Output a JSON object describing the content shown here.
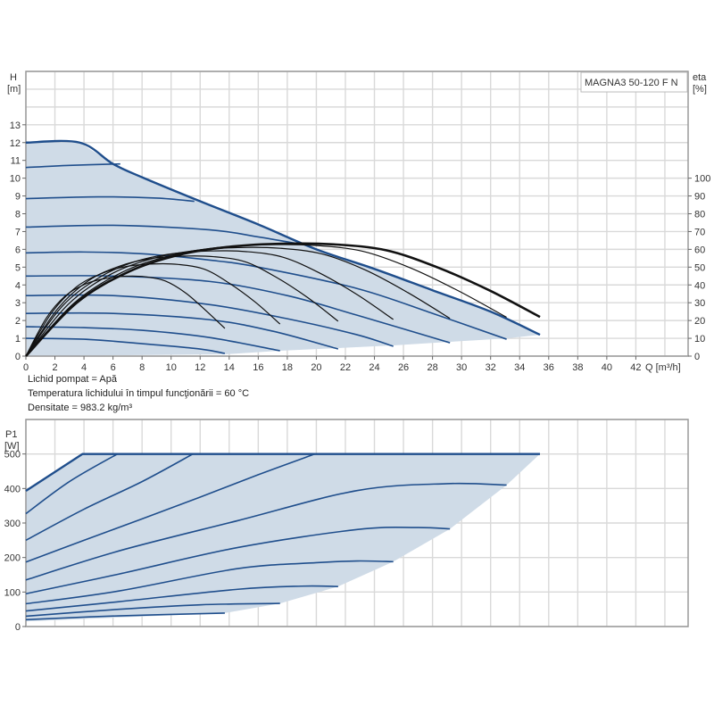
{
  "colors": {
    "area_fill": "#cfdbe7",
    "head_line": "#1f4e8c",
    "eff_line": "#111111",
    "grid": "#d9d9d9",
    "axis": "#9a9a9a"
  },
  "notes": [
    "Lichid pompat = Apă",
    "Temperatura lichidului în timpul funcţionării = 60 °C",
    "Densitate = 983.2 kg/m³"
  ],
  "chart_data": [
    {
      "type": "line",
      "title": "MAGNA3 50-120 F N",
      "xlabel": "Q [m³/h]",
      "ylabel": "H",
      "yunit": "[m]",
      "y2label": "eta",
      "y2unit": "[%]",
      "xlim": [
        0,
        45.6
      ],
      "ylim": [
        0,
        16
      ],
      "y2lim": [
        0,
        160
      ],
      "grid": true,
      "xticks": [
        0,
        2,
        4,
        6,
        8,
        10,
        12,
        14,
        16,
        18,
        20,
        22,
        24,
        26,
        28,
        30,
        32,
        34,
        36,
        38,
        40,
        42
      ],
      "yticks": [
        0,
        1,
        2,
        3,
        4,
        5,
        6,
        7,
        8,
        9,
        10,
        11,
        12,
        13
      ],
      "y2ticks": [
        0,
        10,
        20,
        30,
        40,
        50,
        60,
        70,
        80,
        90,
        100
      ],
      "operating_area": [
        [
          0,
          0
        ],
        [
          13.7,
          0.1
        ],
        [
          17.5,
          0.3
        ],
        [
          21.5,
          0.45
        ],
        [
          25.3,
          0.6
        ],
        [
          29.2,
          0.8
        ],
        [
          33.1,
          1.0
        ],
        [
          35.4,
          1.2
        ],
        [
          32,
          2.5
        ],
        [
          28,
          3.7
        ],
        [
          24,
          4.9
        ],
        [
          20,
          6.0
        ],
        [
          16,
          7.4
        ],
        [
          12,
          8.7
        ],
        [
          8,
          10.05
        ],
        [
          6,
          10.8
        ],
        [
          3.7,
          12
        ],
        [
          0,
          12
        ]
      ],
      "head_curves": [
        {
          "points": [
            [
              0,
              12
            ],
            [
              3.7,
              12
            ],
            [
              6,
              10.8
            ],
            [
              8,
              10.05
            ],
            [
              12,
              8.7
            ],
            [
              16,
              7.4
            ],
            [
              20,
              6.0
            ],
            [
              24,
              4.9
            ],
            [
              28,
              3.7
            ],
            [
              32,
              2.5
            ],
            [
              35.4,
              1.2
            ]
          ],
          "max": true
        },
        {
          "points": [
            [
              0,
              10.6
            ],
            [
              3,
              10.72
            ],
            [
              6.5,
              10.8
            ]
          ]
        },
        {
          "points": [
            [
              0,
              8.85
            ],
            [
              5,
              8.95
            ],
            [
              9,
              8.88
            ],
            [
              11.6,
              8.7
            ]
          ]
        },
        {
          "points": [
            [
              0,
              7.25
            ],
            [
              6,
              7.35
            ],
            [
              12.6,
              7.1
            ],
            [
              16,
              6.7
            ],
            [
              18.5,
              6.35
            ]
          ]
        },
        {
          "points": [
            [
              0,
              5.8
            ],
            [
              4,
              5.85
            ],
            [
              8,
              5.75
            ],
            [
              12.6,
              5.4
            ],
            [
              16,
              5.0
            ],
            [
              22.8,
              3.8
            ],
            [
              28,
              2.4
            ],
            [
              33.1,
              0.95
            ]
          ]
        },
        {
          "points": [
            [
              0,
              4.5
            ],
            [
              6,
              4.5
            ],
            [
              12.6,
              4.2
            ],
            [
              18,
              3.4
            ],
            [
              22.8,
              2.3
            ],
            [
              29.2,
              0.75
            ]
          ]
        },
        {
          "points": [
            [
              0,
              3.4
            ],
            [
              6,
              3.4
            ],
            [
              12.6,
              2.9
            ],
            [
              18,
              2.1
            ],
            [
              22.8,
              1.2
            ],
            [
              25.3,
              0.55
            ]
          ]
        },
        {
          "points": [
            [
              0,
              2.4
            ],
            [
              6,
              2.4
            ],
            [
              12.6,
              2.05
            ],
            [
              17,
              1.4
            ],
            [
              21.5,
              0.4
            ]
          ]
        },
        {
          "points": [
            [
              0,
              1.65
            ],
            [
              4,
              1.6
            ],
            [
              8,
              1.45
            ],
            [
              12.6,
              1.05
            ],
            [
              17.5,
              0.3
            ]
          ]
        },
        {
          "points": [
            [
              0,
              1.0
            ],
            [
              4,
              0.95
            ],
            [
              8,
              0.7
            ],
            [
              12,
              0.4
            ],
            [
              13.7,
              0.15
            ]
          ]
        }
      ],
      "efficiency_curves": [
        {
          "points": [
            [
              0,
              0
            ],
            [
              1.4,
              21.3
            ],
            [
              2.7,
              33.7
            ],
            [
              4.1,
              40.5
            ],
            [
              5.5,
              43.7
            ],
            [
              6.9,
              44.9
            ],
            [
              8.2,
              44.6
            ],
            [
              9.6,
              42.2
            ],
            [
              11.0,
              35.5
            ],
            [
              12.3,
              26.3
            ],
            [
              13.7,
              15.6
            ]
          ]
        },
        {
          "points": [
            [
              0,
              0
            ],
            [
              1.8,
              24.6
            ],
            [
              3.5,
              39
            ],
            [
              5.3,
              46.7
            ],
            [
              7.0,
              50.5
            ],
            [
              8.8,
              51.8
            ],
            [
              10.5,
              51.5
            ],
            [
              12.3,
              48.8
            ],
            [
              14.0,
              41
            ],
            [
              15.8,
              30.3
            ],
            [
              17.5,
              18
            ]
          ]
        },
        {
          "points": [
            [
              0,
              0
            ],
            [
              2.2,
              26.7
            ],
            [
              4.3,
              42.3
            ],
            [
              6.5,
              50.7
            ],
            [
              8.6,
              54.8
            ],
            [
              10.8,
              56.2
            ],
            [
              12.9,
              55.9
            ],
            [
              15.1,
              53
            ],
            [
              17.2,
              44.5
            ],
            [
              19.4,
              32.9
            ],
            [
              21.5,
              19.6
            ]
          ]
        },
        {
          "points": [
            [
              0,
              0
            ],
            [
              2.5,
              28
            ],
            [
              5.1,
              44.4
            ],
            [
              7.6,
              53.3
            ],
            [
              10.1,
              57.6
            ],
            [
              12.7,
              59.1
            ],
            [
              15.2,
              58.7
            ],
            [
              17.7,
              55.6
            ],
            [
              20.2,
              46.8
            ],
            [
              22.8,
              34.6
            ],
            [
              25.3,
              20.6
            ]
          ]
        },
        {
          "points": [
            [
              0,
              0
            ],
            [
              2.9,
              29
            ],
            [
              5.8,
              45.8
            ],
            [
              8.8,
              55
            ],
            [
              11.7,
              59.4
            ],
            [
              14.6,
              61
            ],
            [
              17.5,
              60.6
            ],
            [
              20.4,
              57.4
            ],
            [
              23.4,
              48.3
            ],
            [
              26.3,
              35.7
            ],
            [
              29.2,
              21.2
            ]
          ]
        },
        {
          "points": [
            [
              0,
              0
            ],
            [
              3.3,
              29.7
            ],
            [
              6.6,
              47
            ],
            [
              9.9,
              56.4
            ],
            [
              13.2,
              61
            ],
            [
              16.6,
              62.6
            ],
            [
              19.9,
              62.2
            ],
            [
              23.2,
              58.9
            ],
            [
              26.5,
              49.5
            ],
            [
              29.8,
              36.6
            ],
            [
              33.1,
              21.8
            ]
          ]
        },
        {
          "points": [
            [
              0,
              0
            ],
            [
              3.5,
              30
            ],
            [
              7.1,
              47.5
            ],
            [
              10.6,
              57
            ],
            [
              14.2,
              61.6
            ],
            [
              17.7,
              63.2
            ],
            [
              21.2,
              62.8
            ],
            [
              24.8,
              59.5
            ],
            [
              28.3,
              50
            ],
            [
              31.9,
              37
            ],
            [
              35.4,
              22
            ]
          ],
          "max": true
        }
      ]
    },
    {
      "type": "line",
      "ylabel": "P1",
      "yunit": "[W]",
      "xlim": [
        0,
        45.6
      ],
      "ylim": [
        0,
        600
      ],
      "grid": true,
      "yticks": [
        0,
        100,
        200,
        300,
        400,
        500
      ],
      "operating_area": [
        [
          0,
          15
        ],
        [
          13.7,
          39
        ],
        [
          17.5,
          67
        ],
        [
          21.5,
          116
        ],
        [
          25.3,
          188
        ],
        [
          29.2,
          283
        ],
        [
          33.1,
          410
        ],
        [
          35.4,
          500
        ],
        [
          3.9,
          500
        ],
        [
          0,
          393
        ]
      ],
      "power_curves": [
        {
          "points": [
            [
              0,
              393
            ],
            [
              3.9,
              500
            ],
            [
              35.4,
              500
            ]
          ],
          "max": true
        },
        {
          "points": [
            [
              0,
              327
            ],
            [
              3,
              420
            ],
            [
              6.3,
              500
            ]
          ]
        },
        {
          "points": [
            [
              0,
              250
            ],
            [
              4,
              340
            ],
            [
              8,
              420
            ],
            [
              11.5,
              500
            ]
          ]
        },
        {
          "points": [
            [
              0,
              187
            ],
            [
              4,
              250
            ],
            [
              8,
              312
            ],
            [
              12,
              375
            ],
            [
              16,
              440
            ],
            [
              19.9,
              500
            ]
          ]
        },
        {
          "points": [
            [
              0,
              135
            ],
            [
              6.4,
              219
            ],
            [
              14.6,
              307
            ],
            [
              22.8,
              394
            ],
            [
              29,
              414
            ],
            [
              33.1,
              410
            ]
          ]
        },
        {
          "points": [
            [
              0,
              95
            ],
            [
              6.4,
              152
            ],
            [
              14.6,
              229
            ],
            [
              22.8,
              281
            ],
            [
              26.9,
              287
            ],
            [
              29.2,
              283
            ]
          ]
        },
        {
          "points": [
            [
              0,
              66
            ],
            [
              6.4,
              103
            ],
            [
              14.6,
              168
            ],
            [
              20,
              185
            ],
            [
              22.8,
              190
            ],
            [
              25.3,
              188
            ]
          ]
        },
        {
          "points": [
            [
              0,
              45
            ],
            [
              6.4,
              72
            ],
            [
              14.6,
              108
            ],
            [
              19,
              117
            ],
            [
              21.5,
              116
            ]
          ]
        },
        {
          "points": [
            [
              0,
              30
            ],
            [
              6.4,
              50
            ],
            [
              12,
              63
            ],
            [
              17.5,
              67
            ]
          ]
        },
        {
          "points": [
            [
              0,
              20
            ],
            [
              6.4,
              31
            ],
            [
              13.7,
              39
            ]
          ]
        }
      ]
    }
  ]
}
